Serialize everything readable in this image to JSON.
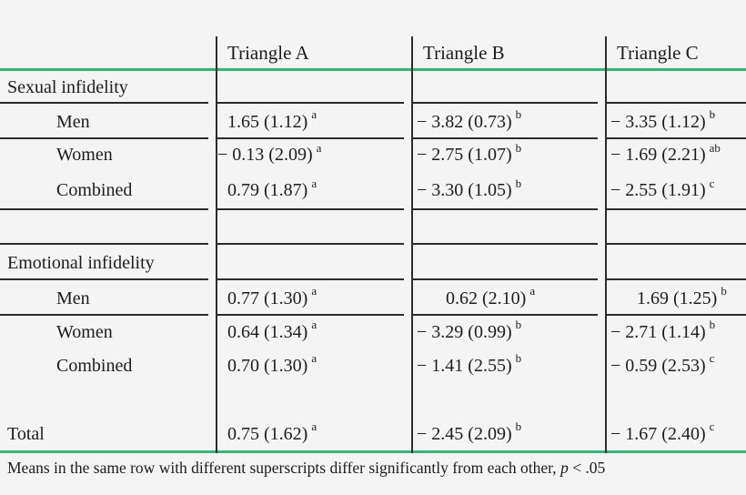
{
  "columns": [
    "Triangle A",
    "Triangle B",
    "Triangle C"
  ],
  "sections": [
    {
      "label": "Sexual infidelity",
      "rows": [
        {
          "label": "Men",
          "cells": [
            {
              "v": "1.65 (1.12)",
              "sup": "a"
            },
            {
              "v": "− 3.82 (0.73)",
              "sup": "b"
            },
            {
              "v": "− 3.35 (1.12)",
              "sup": "b"
            }
          ]
        },
        {
          "label": "Women",
          "cells": [
            {
              "v": "− 0.13 (2.09)",
              "sup": "a"
            },
            {
              "v": "− 2.75 (1.07)",
              "sup": "b"
            },
            {
              "v": "− 1.69 (2.21)",
              "sup": "ab"
            }
          ]
        },
        {
          "label": "Combined",
          "cells": [
            {
              "v": "0.79 (1.87)",
              "sup": "a"
            },
            {
              "v": "− 3.30 (1.05)",
              "sup": "b"
            },
            {
              "v": "− 2.55 (1.91)",
              "sup": "c"
            }
          ]
        }
      ]
    },
    {
      "label": "Emotional infidelity",
      "rows": [
        {
          "label": "Men",
          "cells": [
            {
              "v": "0.77 (1.30)",
              "sup": "a"
            },
            {
              "v": "0.62 (2.10)",
              "sup": "a"
            },
            {
              "v": "1.69 (1.25)",
              "sup": "b"
            }
          ]
        },
        {
          "label": "Women",
          "cells": [
            {
              "v": "0.64 (1.34)",
              "sup": "a"
            },
            {
              "v": "− 3.29 (0.99)",
              "sup": "b"
            },
            {
              "v": "− 2.71 (1.14)",
              "sup": "b"
            }
          ]
        },
        {
          "label": "Combined",
          "cells": [
            {
              "v": "0.70 (1.30)",
              "sup": "a"
            },
            {
              "v": "− 1.41 (2.55)",
              "sup": "b"
            },
            {
              "v": "− 0.59 (2.53)",
              "sup": "c"
            }
          ]
        }
      ]
    }
  ],
  "total": {
    "label": "Total",
    "cells": [
      {
        "v": "0.75 (1.62)",
        "sup": "a"
      },
      {
        "v": "− 2.45 (2.09)",
        "sup": "b"
      },
      {
        "v": "− 1.67 (2.40)",
        "sup": "c"
      }
    ]
  },
  "footnote": {
    "text": "Means in the same row with different superscripts differ significantly from each other, ",
    "p": "p",
    "rest": " < .05"
  },
  "colors": {
    "rule_green": "#38b277",
    "rule_black": "#2c2c2c",
    "background": "#f5f4f4",
    "text": "#1d1d1d"
  }
}
